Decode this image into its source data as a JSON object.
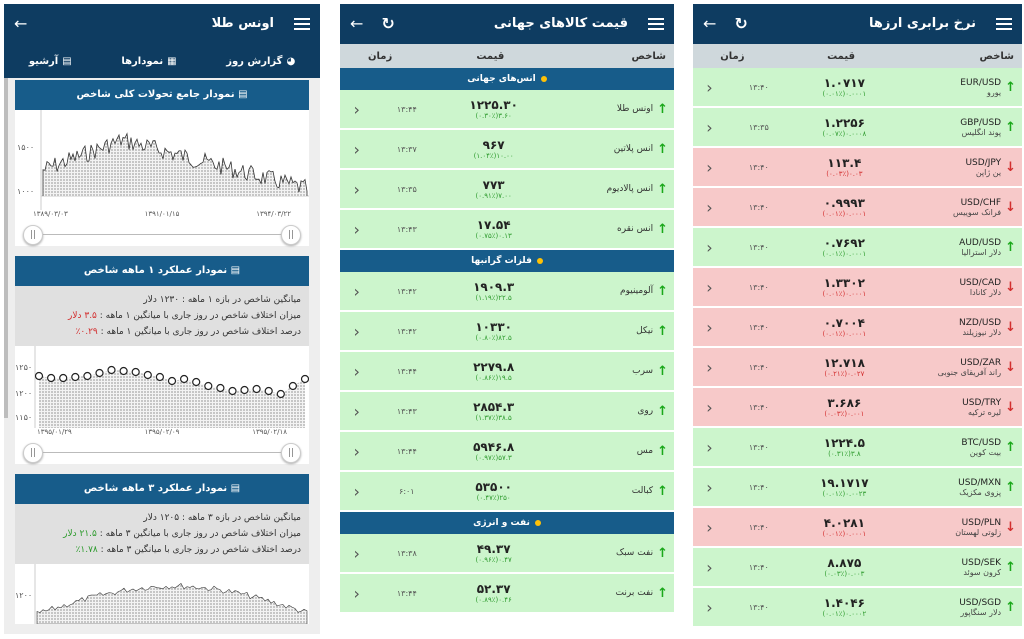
{
  "p1": {
    "title": "اونس طلا",
    "tabs": [
      {
        "label": "گزارش روز",
        "icon": "gauge-icon"
      },
      {
        "label": "نمودارها",
        "icon": "calendar-icon"
      },
      {
        "label": "آرشیو",
        "icon": "chart-icon"
      }
    ],
    "sect1": "نمودار جامع تحولات کلی شاخص",
    "chart1": {
      "ytick1": "۱۵۰۰",
      "ytick2": "۱۰۰۰",
      "x1": "۱۳۸۹/۰۳/۰۳",
      "x2": "۱۳۹۱/۰۱/۱۵",
      "x3": "۱۳۹۴/۰۳/۲۲"
    },
    "sect2": "نمودار عملکرد ۱ ماهه شاخص",
    "info2": {
      "l1": "میانگین شاخص در بازه ۱ ماهه : ۱۲۳۰ دلار",
      "l2a": "میزان اختلاف شاخص در روز جاری با میانگین ۱ ماهه : ",
      "l2b": "۳.۵ دلار",
      "l3a": "درصد اختلاف شاخص در روز جاری با میانگین ۱ ماهه : ",
      "l3b": "۰.۲۹٪"
    },
    "chart2": {
      "ytick1": "۱۲۵۰",
      "ytick2": "۱۲۰۰",
      "ytick3": "۱۱۵۰",
      "x1": "۱۳۹۵/۰۱/۲۹",
      "x2": "۱۳۹۵/۰۲/۰۹",
      "x3": "۱۳۹۵/۰۲/۱۸"
    },
    "sect3": "نمودار عملکرد ۳ ماهه شاخص",
    "info3": {
      "l1": "میانگین شاخص در بازه ۳ ماهه : ۱۲۰۵ دلار",
      "l2a": "میزان اختلاف شاخص در روز جاری با میانگین ۳ ماهه : ",
      "l2b": "۲۱.۵ دلار",
      "l3a": "درصد اختلاف شاخص در روز جاری با میانگین ۳ ماهه : ",
      "l3b": "۱.۷۸٪"
    },
    "chart3": {
      "ytick1": "۱۲۰۰"
    }
  },
  "p2": {
    "title": "قیمت کالاهای جهانی",
    "headers": {
      "index": "شاخص",
      "price": "قیمت",
      "time": "زمان"
    },
    "groups": [
      {
        "label": "انس‌های جهانی",
        "rows": [
          {
            "name": "اونس طلا",
            "price": "۱۲۲۵.۳۰",
            "change": "۳.۶۰(۰.۳۰٪)",
            "time": "۱۳:۴۴",
            "dir": "up"
          },
          {
            "name": "انس پلاتین",
            "price": "۹۶۷",
            "change": "۱۰.۰۰(۱.۰۴٪)",
            "time": "۱۳:۳۷",
            "dir": "up"
          },
          {
            "name": "انس پالادیوم",
            "price": "۷۷۳",
            "change": "۷.۰۰(۰.۹۱٪)",
            "time": "۱۳:۳۵",
            "dir": "up"
          },
          {
            "name": "انس نقره",
            "price": "۱۷.۵۴",
            "change": "۰.۱۳(۰.۷۵٪)",
            "time": "۱۳:۴۳",
            "dir": "up"
          }
        ]
      },
      {
        "label": "فلزات گرانبها",
        "rows": [
          {
            "name": "آلومینیوم",
            "price": "۱۹۰۹.۳",
            "change": "۲۲.۵(۱.۱۹٪)",
            "time": "۱۳:۴۲",
            "dir": "up"
          },
          {
            "name": "نیکل",
            "price": "۱۰۳۳۰",
            "change": "۸۲.۵(۰.۸۰٪)",
            "time": "۱۳:۴۲",
            "dir": "up"
          },
          {
            "name": "سرب",
            "price": "۲۲۷۹.۸",
            "change": "۱۹.۵(۰.۸۶٪)",
            "time": "۱۳:۴۴",
            "dir": "up"
          },
          {
            "name": "روی",
            "price": "۲۸۵۴.۳",
            "change": "۳۸.۵(۱.۳۷٪)",
            "time": "۱۳:۴۳",
            "dir": "up"
          },
          {
            "name": "مس",
            "price": "۵۹۴۶.۸",
            "change": "۵۷.۳(۰.۹۷٪)",
            "time": "۱۳:۴۴",
            "dir": "up"
          },
          {
            "name": "کبالت",
            "price": "۵۳۵۰۰",
            "change": "۲۵۰(۰.۴۷٪)",
            "time": "۶:۰۱",
            "dir": "up"
          }
        ]
      },
      {
        "label": "نفت و انرژی",
        "rows": [
          {
            "name": "نفت سبک",
            "price": "۴۹.۳۷",
            "change": "۰.۴۷(۰.۹۶٪)",
            "time": "۱۳:۳۸",
            "dir": "up"
          },
          {
            "name": "نفت برنت",
            "price": "۵۲.۳۷",
            "change": "۰.۴۶(۰.۸۹٪)",
            "time": "۱۳:۴۴",
            "dir": "up"
          }
        ]
      }
    ]
  },
  "p3": {
    "title": "نرخ برابری ارزها",
    "headers": {
      "index": "شاخص",
      "price": "قیمت",
      "time": "زمان"
    },
    "rows": [
      {
        "sym": "EUR/USD",
        "name": "یورو",
        "price": "۱.۰۷۱۷",
        "change": "۰.۰۰۰۱(۰.۰۱٪)",
        "time": "۱۳:۴۰",
        "dir": "up"
      },
      {
        "sym": "GBP/USD",
        "name": "پوند انگلیس",
        "price": "۱.۲۲۵۶",
        "change": "۰.۰۰۰۸(۰.۰۷٪)",
        "time": "۱۳:۳۵",
        "dir": "up"
      },
      {
        "sym": "USD/JPY",
        "name": "ین ژاپن",
        "price": "۱۱۳.۴",
        "change": "۰.۰۳(۰.۰۳٪)",
        "time": "۱۳:۴۰",
        "dir": "dn"
      },
      {
        "sym": "USD/CHF",
        "name": "فرانک سوییس",
        "price": "۰.۹۹۹۳",
        "change": "۰.۰۰۰۱(۰.۰۱٪)",
        "time": "۱۳:۴۰",
        "dir": "dn"
      },
      {
        "sym": "AUD/USD",
        "name": "دلار استرالیا",
        "price": "۰.۷۶۹۲",
        "change": "۰.۰۰۰۱(۰.۰۱٪)",
        "time": "۱۳:۴۰",
        "dir": "up"
      },
      {
        "sym": "USD/CAD",
        "name": "دلار کانادا",
        "price": "۱.۳۳۰۲",
        "change": "۰.۰۰۰۱(۰.۰۱٪)",
        "time": "۱۳:۴۰",
        "dir": "dn"
      },
      {
        "sym": "NZD/USD",
        "name": "دلار نیوزیلند",
        "price": "۰.۷۰۰۴",
        "change": "۰.۰۰۰۱(۰.۰۱٪)",
        "time": "۱۳:۴۰",
        "dir": "dn"
      },
      {
        "sym": "USD/ZAR",
        "name": "راند آفریقای جنوبی",
        "price": "۱۲.۷۱۸",
        "change": "۰.۰۲۷(۰.۲۱٪)",
        "time": "۱۳:۴۰",
        "dir": "dn"
      },
      {
        "sym": "USD/TRY",
        "name": "لیره ترکیه",
        "price": "۳.۶۸۶",
        "change": "۰.۰۰۱(۰.۰۳٪)",
        "time": "۱۳:۴۰",
        "dir": "dn"
      },
      {
        "sym": "BTC/USD",
        "name": "بیت کوین",
        "price": "۱۲۲۴.۵",
        "change": "۳.۸(۰.۳۱٪)",
        "time": "۱۳:۴۰",
        "dir": "up"
      },
      {
        "sym": "USD/MXN",
        "name": "پزوی مکزیک",
        "price": "۱۹.۱۷۱۷",
        "change": "۰.۰۰۲۳(۰.۰۱٪)",
        "time": "۱۳:۴۰",
        "dir": "up"
      },
      {
        "sym": "USD/PLN",
        "name": "زلوتی لهستان",
        "price": "۴.۰۲۸۱",
        "change": "۰.۰۰۰۱(۰.۰۱٪)",
        "time": "۱۳:۴۰",
        "dir": "dn"
      },
      {
        "sym": "USD/SEK",
        "name": "کرون سوئد",
        "price": "۸.۸۷۵",
        "change": "۰.۰۰۳(۰.۰۳٪)",
        "time": "۱۳:۴۰",
        "dir": "up"
      },
      {
        "sym": "USD/SGD",
        "name": "دلار سنگاپور",
        "price": "۱.۴۰۴۶",
        "change": "۰.۰۰۰۲(۰.۰۱٪)",
        "time": "۱۳:۴۰",
        "dir": "up"
      }
    ]
  }
}
